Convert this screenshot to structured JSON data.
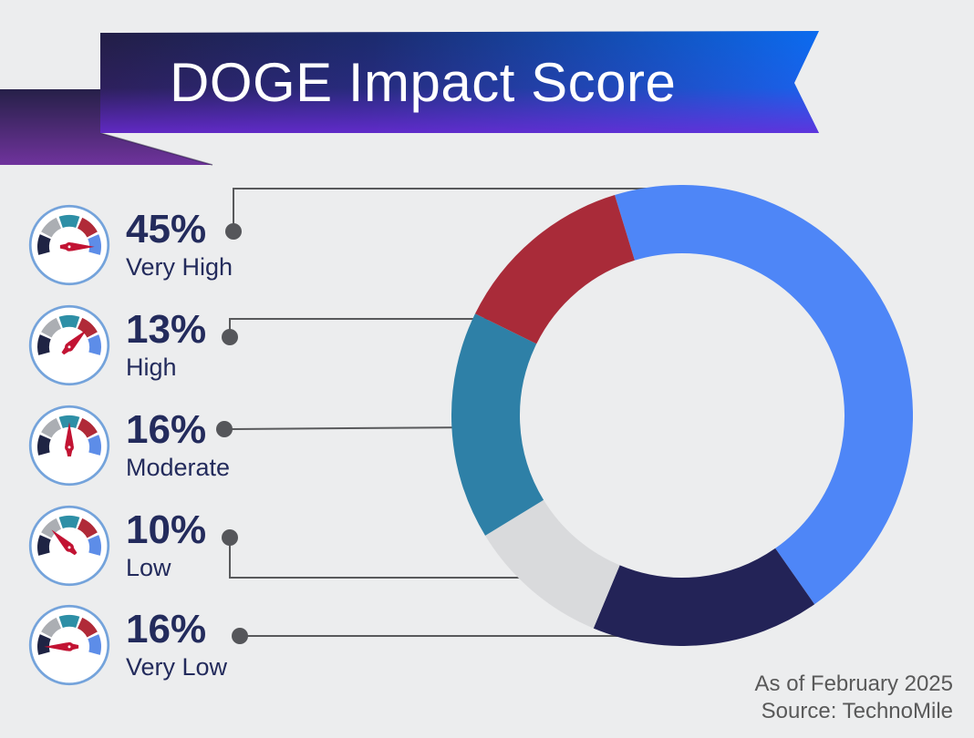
{
  "title": {
    "text": "DOGE Impact Score"
  },
  "legend": {
    "items": [
      {
        "value": "45%",
        "label": "Very High",
        "needle_deg": 0
      },
      {
        "value": "13%",
        "label": "High",
        "needle_deg": 45
      },
      {
        "value": "16%",
        "label": "Moderate",
        "needle_deg": 90
      },
      {
        "value": "10%",
        "label": "Low",
        "needle_deg": 135
      },
      {
        "value": "16%",
        "label": "Very Low",
        "needle_deg": 180
      }
    ]
  },
  "footer": {
    "line1": "As of February 2025",
    "line2": "Source: TechnoMile"
  },
  "colors": {
    "background": "#ECEDEE",
    "text_navy": "#232B5C",
    "leader_line": "#58595B",
    "footer_text": "#595959",
    "banner_dark": "#221E46",
    "banner_blue": "#0B6CF0",
    "banner_purple": "#6C2BD9",
    "tail_top": "#262048",
    "tail_bottom": "#6F339C"
  },
  "gauge": {
    "ring_color": "#74A3DB",
    "face_color": "#FFFFFF",
    "needle_color": "#C21333",
    "segment_colors": [
      "#1F2444",
      "#ABAEB3",
      "#2E8FA6",
      "#B02A38",
      "#5D8DE8"
    ]
  },
  "chart_data": {
    "type": "donut",
    "title": "DOGE Impact Score",
    "categories": [
      "Very High",
      "High",
      "Moderate",
      "Low",
      "Very Low"
    ],
    "values": [
      45,
      13,
      16,
      10,
      16
    ],
    "unit": "%",
    "legend_position": "left",
    "start_angle_deg": -17,
    "segments": [
      {
        "label": "Very High",
        "value": 45,
        "color": "#4E86F7"
      },
      {
        "label": "Very Low",
        "value": 16,
        "color": "#232357"
      },
      {
        "label": "Low",
        "value": 10,
        "color": "#D9DADC"
      },
      {
        "label": "Moderate",
        "value": 16,
        "color": "#2E80A7"
      },
      {
        "label": "High",
        "value": 13,
        "color": "#A92B39"
      }
    ],
    "annotations": [
      "As of February 2025",
      "Source: TechnoMile"
    ]
  }
}
